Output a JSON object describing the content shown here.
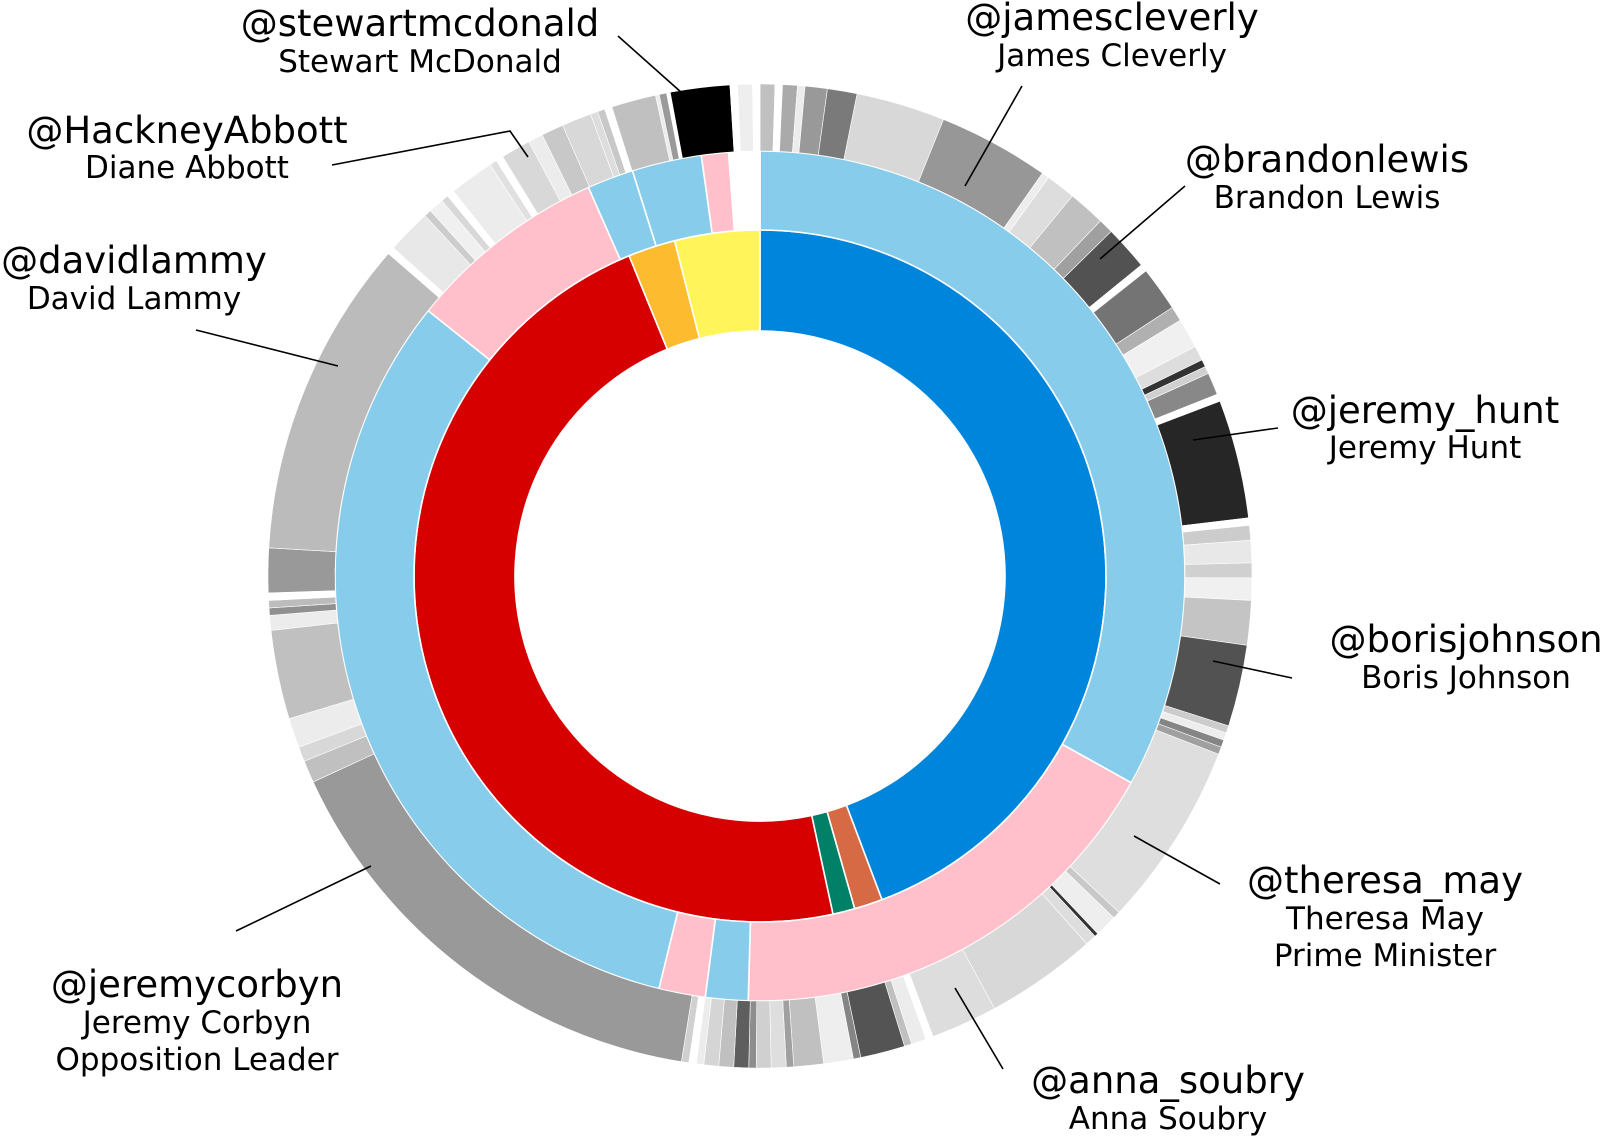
{
  "chart_data": {
    "type": "sunburst",
    "title": "",
    "rings": {
      "inner": [
        {
          "color": "#0085dc",
          "value": 150.5
        },
        {
          "color": "#d66a44",
          "value": 4.5
        },
        {
          "color": "#008066",
          "value": 3.5
        },
        {
          "color": "#d60000",
          "value": 160.5
        },
        {
          "color": "#fdbb30",
          "value": 7.5
        },
        {
          "color": "#fff55a",
          "value": 13.5
        }
      ],
      "middle": [
        {
          "color": "#87cceb",
          "value": 112.5
        },
        {
          "color": "#ffc0cb",
          "value": 59
        },
        {
          "color": "#87cceb",
          "value": 5.5
        },
        {
          "color": "#ffc0cb",
          "value": 6
        },
        {
          "color": "#87cceb",
          "value": 108.5
        },
        {
          "color": "#ffc0cb",
          "value": 26
        },
        {
          "color": "#87cceb",
          "value": 6
        },
        {
          "color": "#87cceb",
          "value": 9
        },
        {
          "color": "#ffc0cb",
          "value": 3.5
        },
        {
          "color": "#ffffff",
          "value": 4
        }
      ],
      "outer": [
        {
          "color": "#c0c0c0",
          "value": 2
        },
        {
          "color": "#ffffff",
          "value": 1
        },
        {
          "color": "#aaaaaa",
          "value": 2
        },
        {
          "color": "#ececec",
          "value": 1
        },
        {
          "color": "#999999",
          "value": 3
        },
        {
          "color": "#7a7a7a",
          "value": 4
        },
        {
          "color": "#d8d8d8",
          "value": 12
        },
        {
          "color": "#979797",
          "value": 15
        },
        {
          "color": "#ededed",
          "value": 1
        },
        {
          "color": "#dddddd",
          "value": 4
        },
        {
          "color": "#c0c0c0",
          "value": 5
        },
        {
          "color": "#a0a0a0",
          "value": 2
        },
        {
          "color": "#525252",
          "value": 6
        },
        {
          "color": "#ffffff",
          "value": 1
        },
        {
          "color": "#747474",
          "value": 6
        },
        {
          "color": "#b0b0b0",
          "value": 2
        },
        {
          "color": "#f0f0f0",
          "value": 4
        },
        {
          "color": "#dddddd",
          "value": 2
        },
        {
          "color": "#333333",
          "value": 1
        },
        {
          "color": "#d0d0d0",
          "value": 1
        },
        {
          "color": "#888888",
          "value": 3
        },
        {
          "color": "#ffffff",
          "value": 1
        },
        {
          "color": "#262626",
          "value": 16
        },
        {
          "color": "#ffffff",
          "value": 1
        },
        {
          "color": "#cccccc",
          "value": 2
        },
        {
          "color": "#e8e8e8",
          "value": 3
        },
        {
          "color": "#d0d0d0",
          "value": 2
        },
        {
          "color": "#f0f0f0",
          "value": 3
        },
        {
          "color": "#c4c4c4",
          "value": 6
        },
        {
          "color": "#525252",
          "value": 11
        },
        {
          "color": "#cccccc",
          "value": 1
        },
        {
          "color": "#ededed",
          "value": 1
        },
        {
          "color": "#858585",
          "value": 1
        },
        {
          "color": "#a0a0a0",
          "value": 1
        },
        {
          "color": "#dedede",
          "value": 25
        },
        {
          "color": "#c8c8c8",
          "value": 1
        },
        {
          "color": "#eeeeee",
          "value": 3
        },
        {
          "color": "#333333",
          "value": 0.5
        },
        {
          "color": "#dddddd",
          "value": 1.5
        },
        {
          "color": "#d8d8d8",
          "value": 15
        },
        {
          "color": "#dddddd",
          "value": 9
        },
        {
          "color": "#ffffff",
          "value": 1
        },
        {
          "color": "#ececec",
          "value": 2
        },
        {
          "color": "#c0c0c0",
          "value": 1
        },
        {
          "color": "#545454",
          "value": 6
        },
        {
          "color": "#858585",
          "value": 1
        },
        {
          "color": "#eeeeee",
          "value": 4
        },
        {
          "color": "#c0c0c0",
          "value": 4
        },
        {
          "color": "#a0a0a0",
          "value": 1
        },
        {
          "color": "#dedede",
          "value": 2
        },
        {
          "color": "#d0d0d0",
          "value": 2
        },
        {
          "color": "#8d8d8d",
          "value": 1
        },
        {
          "color": "#5e5e5e",
          "value": 2
        },
        {
          "color": "#c0c0c0",
          "value": 2
        },
        {
          "color": "#d5d5d5",
          "value": 2
        },
        {
          "color": "#ececec",
          "value": 1
        },
        {
          "color": "#ffffff",
          "value": 1
        },
        {
          "color": "#d0d0d0",
          "value": 1
        },
        {
          "color": "#999999",
          "value": 64
        },
        {
          "color": "#c0c0c0",
          "value": 3
        },
        {
          "color": "#d8d8d8",
          "value": 2
        },
        {
          "color": "#ececec",
          "value": 4
        },
        {
          "color": "#c0c0c0",
          "value": 12
        },
        {
          "color": "#ececec",
          "value": 2
        },
        {
          "color": "#909090",
          "value": 1
        },
        {
          "color": "#bcbcbc",
          "value": 1
        },
        {
          "color": "#ffffff",
          "value": 1
        },
        {
          "color": "#999999",
          "value": 6
        },
        {
          "color": "#bbbbbb",
          "value": 43
        },
        {
          "color": "#ffffff",
          "value": 1
        },
        {
          "color": "#e8e8e8",
          "value": 6
        },
        {
          "color": "#cccccc",
          "value": 1
        },
        {
          "color": "#f0f0f0",
          "value": 2
        },
        {
          "color": "#d8d8d8",
          "value": 1
        },
        {
          "color": "#ffffff",
          "value": 1
        },
        {
          "color": "#ececec",
          "value": 6
        },
        {
          "color": "#e0e0e0",
          "value": 1
        },
        {
          "color": "#ffffff",
          "value": 1
        },
        {
          "color": "#d8d8d8",
          "value": 4
        },
        {
          "color": "#ececec",
          "value": 2
        },
        {
          "color": "#c8c8c8",
          "value": 3
        },
        {
          "color": "#d8d8d8",
          "value": 4
        },
        {
          "color": "#dddddd",
          "value": 1
        },
        {
          "color": "#c8c8c8",
          "value": 1
        },
        {
          "color": "#ffffff",
          "value": 1
        },
        {
          "color": "#c0c0c0",
          "value": 6
        },
        {
          "color": "#ececec",
          "value": 0.5
        },
        {
          "color": "#9a9a9a",
          "value": 1
        },
        {
          "color": "#ffffff",
          "value": 0.5
        },
        {
          "color": "#000000",
          "value": 8
        },
        {
          "color": "#ffffff",
          "value": 1
        },
        {
          "color": "#eeeeee",
          "value": 2
        },
        {
          "color": "#ffffff",
          "value": 1
        }
      ]
    },
    "annotations": [
      {
        "handle": "@stewartmcdonald",
        "lines": [
          "Stewart McDonald"
        ]
      },
      {
        "handle": "@jamescleverly",
        "lines": [
          "James Cleverly"
        ]
      },
      {
        "handle": "@HackneyAbbott",
        "lines": [
          "Diane Abbott"
        ]
      },
      {
        "handle": "@brandonlewis",
        "lines": [
          "Brandon Lewis"
        ]
      },
      {
        "handle": "@davidlammy",
        "lines": [
          "David Lammy"
        ]
      },
      {
        "handle": "@jeremy_hunt",
        "lines": [
          "Jeremy Hunt"
        ]
      },
      {
        "handle": "@borisjohnson",
        "lines": [
          "Boris Johnson"
        ]
      },
      {
        "handle": "@theresa_may",
        "lines": [
          "Theresa May",
          "Prime Minister"
        ]
      },
      {
        "handle": "@jeremycorbyn",
        "lines": [
          "Jeremy Corbyn",
          "Opposition Leader"
        ]
      },
      {
        "handle": "@anna_soubry",
        "lines": [
          "Anna Soubry"
        ]
      }
    ]
  }
}
